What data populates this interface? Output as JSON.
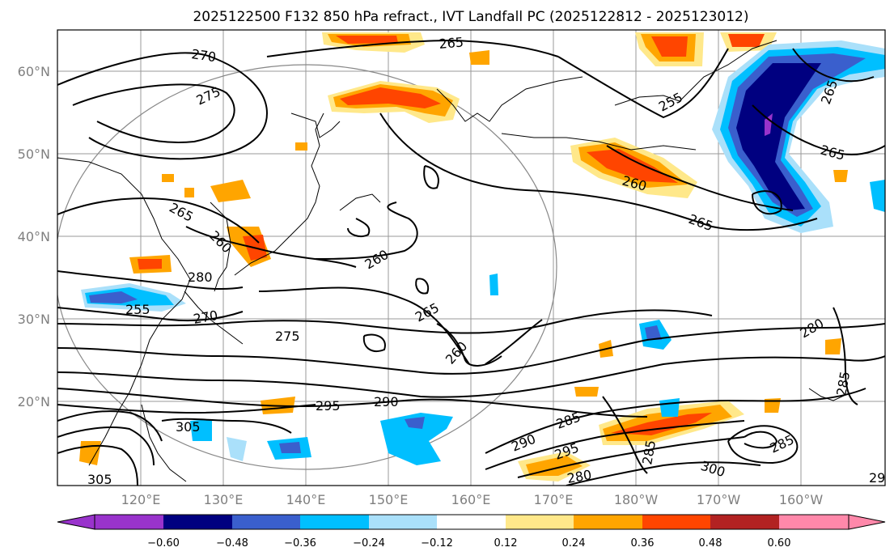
{
  "title": "2025122500 F132 850 hPa refract., IVT Landfall PC (2025122812 - 2025123012)",
  "map": {
    "lon_labels": [
      "120°E",
      "130°E",
      "140°E",
      "150°E",
      "160°E",
      "170°E",
      "180°W",
      "170°W",
      "160°W"
    ],
    "lat_labels": [
      "20°N",
      "30°N",
      "40°N",
      "50°N",
      "60°N"
    ],
    "contour_labels": [
      {
        "text": "270",
        "name": "contour-label-270-nw"
      },
      {
        "text": "275",
        "name": "contour-label-275-nw"
      },
      {
        "text": "265",
        "name": "contour-label-265-north"
      },
      {
        "text": "255",
        "name": "contour-label-255-ne"
      },
      {
        "text": "265",
        "name": "contour-label-265-far-ne"
      },
      {
        "text": "265",
        "name": "contour-label-265-east"
      },
      {
        "text": "260",
        "name": "contour-label-260-ne"
      },
      {
        "text": "265",
        "name": "contour-label-265-pacific"
      },
      {
        "text": "265",
        "name": "contour-label-265-manchuria"
      },
      {
        "text": "260",
        "name": "contour-label-260-japan"
      },
      {
        "text": "260",
        "name": "contour-label-260-east-japan"
      },
      {
        "text": "265",
        "name": "contour-label-265-central"
      },
      {
        "text": "260",
        "name": "contour-label-260-central"
      },
      {
        "text": "280",
        "name": "contour-label-280-east"
      },
      {
        "text": "285",
        "name": "contour-label-285-east"
      },
      {
        "text": "280",
        "name": "contour-label-280-korea"
      },
      {
        "text": "255",
        "name": "contour-label-255-china"
      },
      {
        "text": "270",
        "name": "contour-label-270-south-japan"
      },
      {
        "text": "275",
        "name": "contour-label-275-central"
      },
      {
        "text": "295",
        "name": "contour-label-295"
      },
      {
        "text": "290",
        "name": "contour-label-290"
      },
      {
        "text": "285",
        "name": "contour-label-285-south"
      },
      {
        "text": "290",
        "name": "contour-label-290-south"
      },
      {
        "text": "295",
        "name": "contour-label-295-south"
      },
      {
        "text": "280",
        "name": "contour-label-280-south"
      },
      {
        "text": "285",
        "name": "contour-label-285-vertical"
      },
      {
        "text": "300",
        "name": "contour-label-300"
      },
      {
        "text": "285",
        "name": "contour-label-285-se"
      },
      {
        "text": "305",
        "name": "contour-label-305-philippines"
      },
      {
        "text": "305",
        "name": "contour-label-305-sw"
      },
      {
        "text": "29",
        "name": "contour-label-29-edge"
      }
    ]
  },
  "colorbar": {
    "tick_labels": [
      "−0.60",
      "−0.48",
      "−0.36",
      "−0.24",
      "−0.12",
      "0.12",
      "0.24",
      "0.36",
      "0.48",
      "0.60"
    ],
    "bins": [
      {
        "name": "bin-under",
        "color": "#9933cc"
      },
      {
        "name": "bin-1",
        "color": "#000080"
      },
      {
        "name": "bin-2",
        "color": "#3a5fcd"
      },
      {
        "name": "bin-3",
        "color": "#00bfff"
      },
      {
        "name": "bin-4",
        "color": "#aae0fa"
      },
      {
        "name": "bin-neutral",
        "color": "#ffffff"
      },
      {
        "name": "bin-6",
        "color": "#ffe88a"
      },
      {
        "name": "bin-7",
        "color": "#ffa500"
      },
      {
        "name": "bin-8",
        "color": "#ff4500"
      },
      {
        "name": "bin-9",
        "color": "#b22222"
      },
      {
        "name": "bin-over",
        "color": "#ff88aa"
      }
    ]
  }
}
